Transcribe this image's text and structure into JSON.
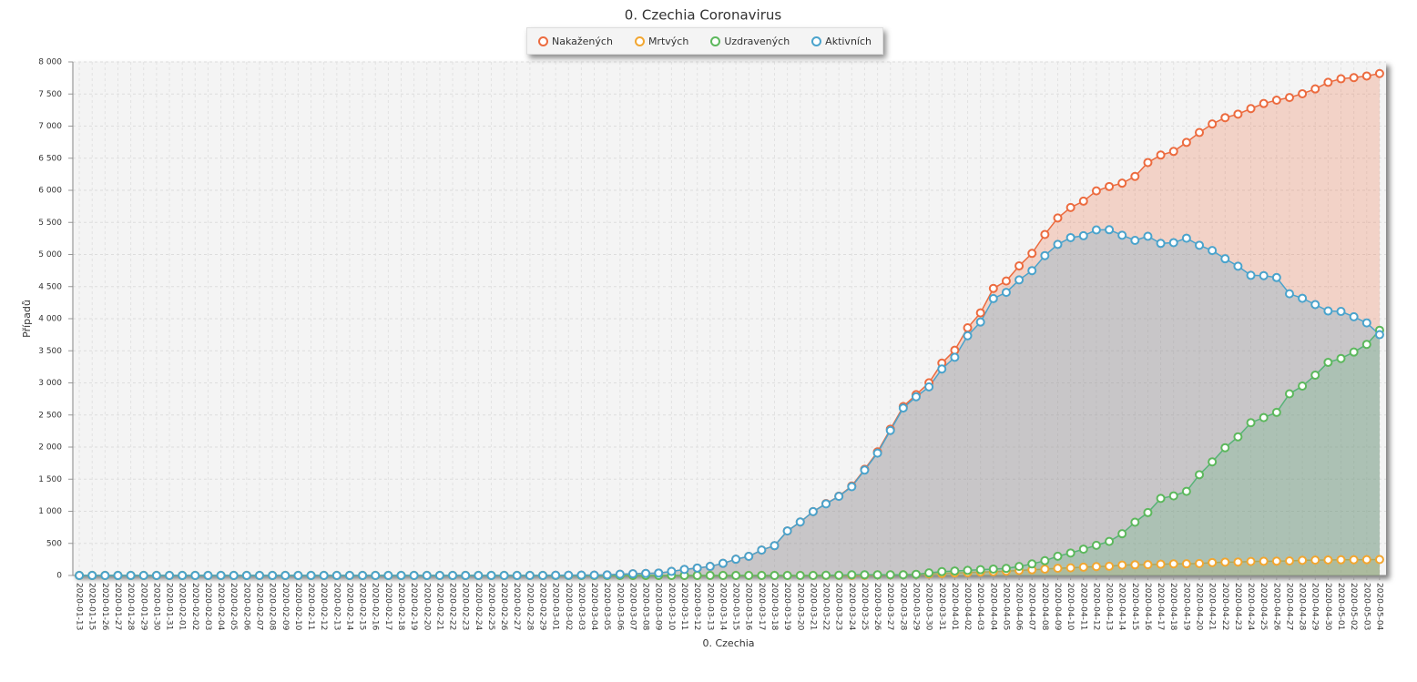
{
  "chart_data": {
    "type": "line",
    "area": true,
    "title": "0. Czechia Coronavirus",
    "x_label": "0. Czechia",
    "y_label": "Případů",
    "grid": true,
    "legend": "top",
    "categories": [
      "2020-01-13",
      "2020-01-15",
      "2020-01-26",
      "2020-01-27",
      "2020-01-28",
      "2020-01-29",
      "2020-01-30",
      "2020-01-31",
      "2020-02-01",
      "2020-02-02",
      "2020-02-03",
      "2020-02-04",
      "2020-02-05",
      "2020-02-06",
      "2020-02-07",
      "2020-02-08",
      "2020-02-09",
      "2020-02-10",
      "2020-02-11",
      "2020-02-12",
      "2020-02-13",
      "2020-02-14",
      "2020-02-15",
      "2020-02-16",
      "2020-02-17",
      "2020-02-18",
      "2020-02-19",
      "2020-02-20",
      "2020-02-21",
      "2020-02-22",
      "2020-02-23",
      "2020-02-24",
      "2020-02-25",
      "2020-02-26",
      "2020-02-27",
      "2020-02-28",
      "2020-02-29",
      "2020-03-01",
      "2020-03-02",
      "2020-03-03",
      "2020-03-04",
      "2020-03-05",
      "2020-03-06",
      "2020-03-07",
      "2020-03-08",
      "2020-03-09",
      "2020-03-10",
      "2020-03-11",
      "2020-03-12",
      "2020-03-13",
      "2020-03-14",
      "2020-03-15",
      "2020-03-16",
      "2020-03-17",
      "2020-03-18",
      "2020-03-19",
      "2020-03-20",
      "2020-03-21",
      "2020-03-22",
      "2020-03-23",
      "2020-03-24",
      "2020-03-25",
      "2020-03-26",
      "2020-03-27",
      "2020-03-28",
      "2020-03-29",
      "2020-03-30",
      "2020-03-31",
      "2020-04-01",
      "2020-04-02",
      "2020-04-03",
      "2020-04-04",
      "2020-04-05",
      "2020-04-06",
      "2020-04-07",
      "2020-04-08",
      "2020-04-09",
      "2020-04-10",
      "2020-04-11",
      "2020-04-12",
      "2020-04-13",
      "2020-04-14",
      "2020-04-15",
      "2020-04-16",
      "2020-04-17",
      "2020-04-18",
      "2020-04-19",
      "2020-04-20",
      "2020-04-21",
      "2020-04-22",
      "2020-04-23",
      "2020-04-24",
      "2020-04-25",
      "2020-04-26",
      "2020-04-27",
      "2020-04-28",
      "2020-04-29",
      "2020-04-30",
      "2020-05-01",
      "2020-05-02",
      "2020-05-03",
      "2020-05-04"
    ],
    "ylim": [
      0,
      8000
    ],
    "yticks": [
      0,
      500,
      {
        "value": 1000,
        "label": "1 000"
      },
      {
        "value": 1500,
        "label": "1 500"
      },
      {
        "value": 2000,
        "label": "2 000"
      },
      {
        "value": 2500,
        "label": "2 500"
      },
      {
        "value": 3000,
        "label": "3 000"
      },
      {
        "value": 3500,
        "label": "3 500"
      },
      {
        "value": 4000,
        "label": "4 000"
      },
      {
        "value": 4500,
        "label": "4 500"
      },
      {
        "value": 5000,
        "label": "5 000"
      },
      {
        "value": 5500,
        "label": "5 500"
      },
      {
        "value": 6000,
        "label": "6 000"
      },
      {
        "value": 6500,
        "label": "6 500"
      },
      {
        "value": 7000,
        "label": "7 000"
      },
      {
        "value": 7500,
        "label": "7 500"
      },
      {
        "value": 8000,
        "label": "8 000"
      }
    ],
    "series": [
      {
        "name": "Nakažených",
        "color": "#ec6b3f",
        "values": [
          0,
          0,
          0,
          0,
          0,
          0,
          0,
          0,
          0,
          0,
          0,
          0,
          0,
          0,
          0,
          0,
          0,
          0,
          0,
          0,
          0,
          0,
          0,
          0,
          0,
          0,
          0,
          0,
          0,
          0,
          0,
          0,
          0,
          0,
          0,
          0,
          0,
          3,
          3,
          5,
          5,
          8,
          19,
          26,
          32,
          38,
          63,
          94,
          116,
          141,
          189,
          253,
          298,
          396,
          464,
          694,
          833,
          995,
          1120,
          1236,
          1394,
          1654,
          1925,
          2279,
          2631,
          2817,
          3001,
          3308,
          3508,
          3858,
          4091,
          4472,
          4587,
          4822,
          5017,
          5312,
          5569,
          5732,
          5831,
          5991,
          6059,
          6111,
          6216,
          6433,
          6549,
          6606,
          6746,
          6900,
          7033,
          7132,
          7187,
          7273,
          7352,
          7404,
          7445,
          7504,
          7579,
          7682,
          7737,
          7755,
          7781,
          7819
        ]
      },
      {
        "name": "Mrtvých",
        "color": "#f2a630",
        "values": [
          0,
          0,
          0,
          0,
          0,
          0,
          0,
          0,
          0,
          0,
          0,
          0,
          0,
          0,
          0,
          0,
          0,
          0,
          0,
          0,
          0,
          0,
          0,
          0,
          0,
          0,
          0,
          0,
          0,
          0,
          0,
          0,
          0,
          0,
          0,
          0,
          0,
          0,
          0,
          0,
          0,
          0,
          0,
          0,
          0,
          0,
          0,
          0,
          0,
          0,
          0,
          0,
          0,
          0,
          0,
          0,
          0,
          0,
          1,
          1,
          1,
          3,
          9,
          9,
          11,
          16,
          23,
          31,
          39,
          44,
          53,
          59,
          67,
          78,
          88,
          99,
          112,
          119,
          129,
          138,
          143,
          161,
          166,
          169,
          176,
          181,
          182,
          186,
          201,
          208,
          210,
          218,
          221,
          223,
          227,
          236,
          239,
          242,
          244,
          245,
          246,
          248
        ]
      },
      {
        "name": "Uzdravených",
        "color": "#5cb85c",
        "values": [
          0,
          0,
          0,
          0,
          0,
          0,
          0,
          0,
          0,
          0,
          0,
          0,
          0,
          0,
          0,
          0,
          0,
          0,
          0,
          0,
          0,
          0,
          0,
          0,
          0,
          0,
          0,
          0,
          0,
          0,
          0,
          0,
          0,
          0,
          0,
          0,
          0,
          0,
          0,
          0,
          0,
          0,
          0,
          0,
          0,
          0,
          0,
          0,
          0,
          0,
          0,
          0,
          0,
          0,
          0,
          0,
          0,
          0,
          3,
          3,
          10,
          10,
          10,
          11,
          11,
          17,
          40,
          60,
          70,
          80,
          90,
          100,
          110,
          140,
          180,
          230,
          300,
          350,
          410,
          470,
          530,
          650,
          830,
          980,
          1200,
          1240,
          1310,
          1570,
          1770,
          1990,
          2160,
          2380,
          2460,
          2540,
          2830,
          2950,
          3120,
          3320,
          3380,
          3480,
          3600,
          3820
        ]
      },
      {
        "name": "Aktivních",
        "color": "#4aa3cc",
        "values": [
          0,
          0,
          0,
          0,
          0,
          0,
          0,
          0,
          0,
          0,
          0,
          0,
          0,
          0,
          0,
          0,
          0,
          0,
          0,
          0,
          0,
          0,
          0,
          0,
          0,
          0,
          0,
          0,
          0,
          0,
          0,
          0,
          0,
          0,
          0,
          0,
          0,
          3,
          3,
          5,
          5,
          8,
          19,
          26,
          32,
          38,
          63,
          94,
          116,
          141,
          189,
          253,
          298,
          396,
          464,
          694,
          833,
          995,
          1116,
          1232,
          1383,
          1641,
          1906,
          2259,
          2609,
          2784,
          2938,
          3217,
          3399,
          3734,
          3948,
          4313,
          4410,
          4604,
          4749,
          4983,
          5157,
          5263,
          5292,
          5383,
          5386,
          5300,
          5220,
          5284,
          5173,
          5185,
          5254,
          5144,
          5062,
          4934,
          4817,
          4675,
          4671,
          4641,
          4388,
          4318,
          4220,
          4120,
          4113,
          4030,
          3935,
          3751
        ]
      }
    ]
  }
}
